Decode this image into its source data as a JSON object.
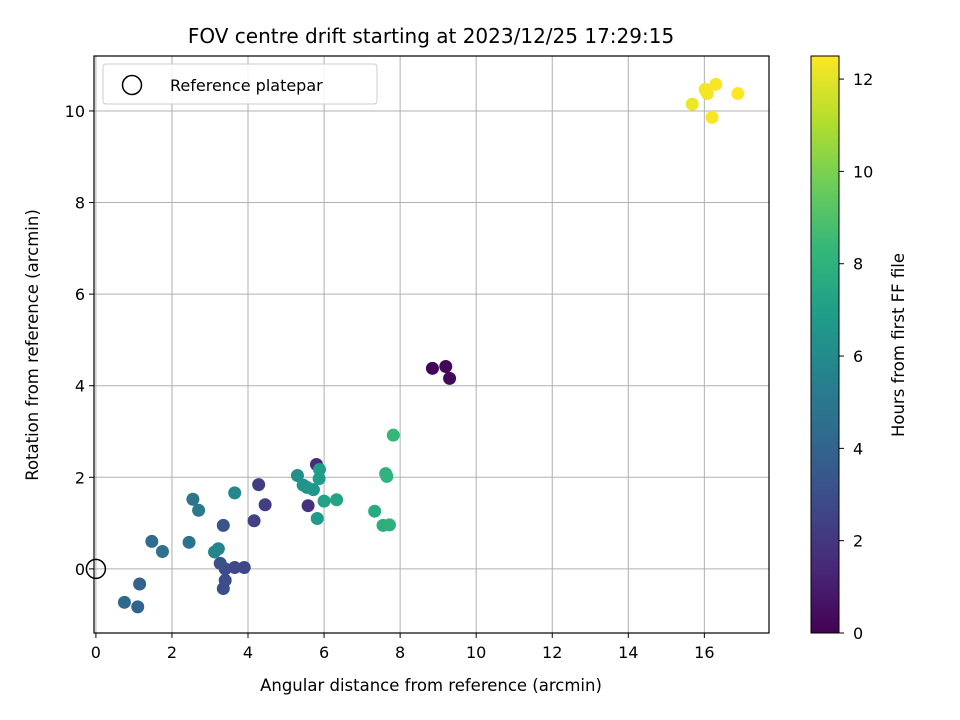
{
  "chart_data": {
    "type": "scatter",
    "title": "FOV centre drift starting at 2023/12/25 17:29:15",
    "xlabel": "Angular distance from reference (arcmin)",
    "ylabel": "Rotation from reference (arcmin)",
    "xlim": [
      -0.05,
      17.7
    ],
    "ylim": [
      -1.4,
      11.2
    ],
    "xticks": [
      0,
      2,
      4,
      6,
      8,
      10,
      12,
      14,
      16
    ],
    "yticks": [
      0,
      2,
      4,
      6,
      8,
      10
    ],
    "grid": true,
    "legend": {
      "position": "top-left",
      "label": "Reference platepar",
      "marker": "open-circle"
    },
    "reference_point": {
      "x": 0,
      "y": 0
    },
    "colorbar": {
      "label": "Hours from first FF file",
      "min": 0,
      "max": 12.5,
      "ticks": [
        0,
        2,
        4,
        6,
        8,
        10,
        12
      ],
      "colormap": "viridis"
    },
    "points": [
      {
        "x": 8.85,
        "y": 4.38,
        "c": 0.1
      },
      {
        "x": 9.2,
        "y": 4.42,
        "c": 0.2
      },
      {
        "x": 9.3,
        "y": 4.16,
        "c": 0.3
      },
      {
        "x": 5.8,
        "y": 2.28,
        "c": 1.6
      },
      {
        "x": 5.58,
        "y": 1.38,
        "c": 1.8
      },
      {
        "x": 4.28,
        "y": 1.84,
        "c": 2.2
      },
      {
        "x": 4.45,
        "y": 1.4,
        "c": 2.3
      },
      {
        "x": 4.16,
        "y": 1.05,
        "c": 2.4
      },
      {
        "x": 3.9,
        "y": 0.03,
        "c": 2.6
      },
      {
        "x": 3.65,
        "y": 0.03,
        "c": 2.7
      },
      {
        "x": 3.4,
        "y": 0.0,
        "c": 2.8
      },
      {
        "x": 3.4,
        "y": -0.25,
        "c": 2.9
      },
      {
        "x": 3.35,
        "y": -0.43,
        "c": 3.0
      },
      {
        "x": 3.27,
        "y": 0.12,
        "c": 3.1
      },
      {
        "x": 3.35,
        "y": 0.95,
        "c": 3.2
      },
      {
        "x": 1.15,
        "y": -0.33,
        "c": 3.9
      },
      {
        "x": 1.1,
        "y": -0.83,
        "c": 4.0
      },
      {
        "x": 0.75,
        "y": -0.73,
        "c": 4.2
      },
      {
        "x": 1.47,
        "y": 0.6,
        "c": 4.4
      },
      {
        "x": 1.75,
        "y": 0.38,
        "c": 4.6
      },
      {
        "x": 2.45,
        "y": 0.58,
        "c": 4.8
      },
      {
        "x": 2.55,
        "y": 1.52,
        "c": 4.9
      },
      {
        "x": 2.7,
        "y": 1.28,
        "c": 5.0
      },
      {
        "x": 3.12,
        "y": 0.37,
        "c": 5.6
      },
      {
        "x": 3.22,
        "y": 0.44,
        "c": 5.7
      },
      {
        "x": 3.65,
        "y": 1.66,
        "c": 5.8
      },
      {
        "x": 5.3,
        "y": 2.04,
        "c": 6.2
      },
      {
        "x": 5.45,
        "y": 1.83,
        "c": 6.4
      },
      {
        "x": 5.55,
        "y": 1.78,
        "c": 6.5
      },
      {
        "x": 5.72,
        "y": 1.73,
        "c": 6.6
      },
      {
        "x": 5.82,
        "y": 1.1,
        "c": 6.8
      },
      {
        "x": 5.87,
        "y": 1.97,
        "c": 6.9
      },
      {
        "x": 5.88,
        "y": 2.17,
        "c": 7.0
      },
      {
        "x": 6.0,
        "y": 1.48,
        "c": 7.1
      },
      {
        "x": 6.33,
        "y": 1.51,
        "c": 7.3
      },
      {
        "x": 7.33,
        "y": 1.26,
        "c": 7.6
      },
      {
        "x": 7.55,
        "y": 0.95,
        "c": 7.8
      },
      {
        "x": 7.72,
        "y": 0.96,
        "c": 7.9
      },
      {
        "x": 7.62,
        "y": 2.08,
        "c": 8.0
      },
      {
        "x": 7.65,
        "y": 2.02,
        "c": 8.1
      },
      {
        "x": 7.82,
        "y": 2.92,
        "c": 8.3
      },
      {
        "x": 15.68,
        "y": 10.15,
        "c": 12.2
      },
      {
        "x": 16.02,
        "y": 10.47,
        "c": 12.3
      },
      {
        "x": 16.08,
        "y": 10.38,
        "c": 12.3
      },
      {
        "x": 16.3,
        "y": 10.58,
        "c": 12.4
      },
      {
        "x": 16.2,
        "y": 9.86,
        "c": 12.4
      },
      {
        "x": 16.88,
        "y": 10.38,
        "c": 12.5
      }
    ]
  }
}
